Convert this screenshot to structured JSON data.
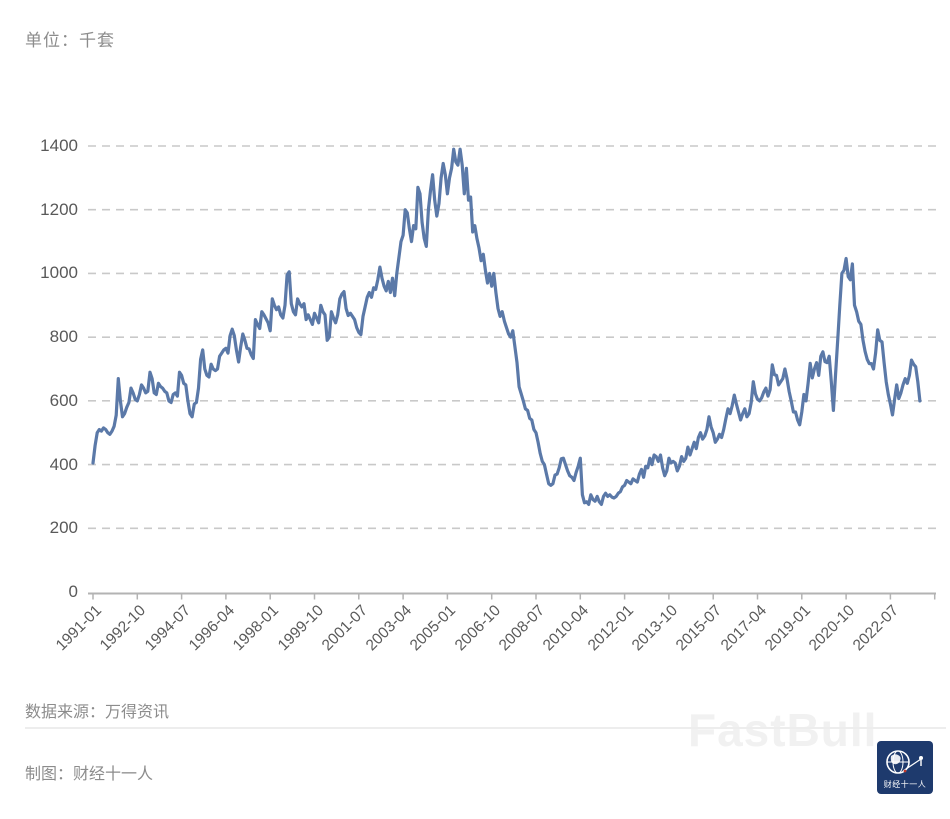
{
  "page": {
    "unit_label": "单位：千套",
    "source": "数据来源：万得资讯",
    "credit": "制图：财经十一人",
    "watermark": "FastBull",
    "logo_text": "财经十一人"
  },
  "colors": {
    "line": "#5b79a8",
    "grid": "#c9c9c9",
    "axis": "#b3b3b3",
    "tick_label": "#595959",
    "muted_text": "#8c8c8c",
    "watermark": "#f1f1f1",
    "logo_bg": "#1e3a6d",
    "logo_accent": "#c0392b"
  },
  "chart_data": {
    "type": "line",
    "title": "单位：千套",
    "xlabel": "",
    "ylabel": "",
    "x_start": "1991-01",
    "frequency": "monthly",
    "months_per_x_tick": 21,
    "x_tick_labels": [
      "1991-01",
      "1992-10",
      "1994-07",
      "1996-04",
      "1998-01",
      "1999-10",
      "2001-07",
      "2003-04",
      "2005-01",
      "2006-10",
      "2008-07",
      "2010-04",
      "2012-01",
      "2013-10",
      "2015-07",
      "2017-04",
      "2019-01",
      "2020-10",
      "2022-07"
    ],
    "y_ticks": [
      0,
      200,
      400,
      600,
      800,
      1000,
      1200,
      1400
    ],
    "ylim": [
      0,
      1400
    ],
    "grid": "dashed-horizontal",
    "legend": "none",
    "values": [
      405,
      460,
      500,
      510,
      505,
      515,
      510,
      500,
      495,
      505,
      520,
      555,
      670,
      600,
      550,
      560,
      580,
      595,
      640,
      625,
      605,
      600,
      620,
      650,
      640,
      625,
      630,
      690,
      670,
      625,
      620,
      655,
      645,
      640,
      630,
      625,
      600,
      595,
      620,
      625,
      615,
      690,
      680,
      655,
      650,
      600,
      560,
      550,
      590,
      595,
      640,
      730,
      760,
      700,
      680,
      675,
      715,
      700,
      695,
      700,
      740,
      750,
      760,
      765,
      750,
      805,
      825,
      805,
      760,
      722,
      770,
      810,
      790,
      765,
      763,
      745,
      733,
      855,
      840,
      827,
      880,
      870,
      858,
      845,
      820,
      920,
      900,
      886,
      895,
      870,
      860,
      900,
      995,
      1005,
      905,
      880,
      870,
      920,
      905,
      895,
      905,
      855,
      870,
      855,
      840,
      875,
      860,
      845,
      900,
      880,
      870,
      790,
      800,
      880,
      860,
      845,
      870,
      920,
      935,
      943,
      890,
      868,
      875,
      865,
      855,
      830,
      815,
      808,
      865,
      895,
      925,
      940,
      925,
      955,
      950,
      980,
      1020,
      985,
      960,
      945,
      975,
      940,
      985,
      930,
      1000,
      1050,
      1100,
      1120,
      1200,
      1190,
      1140,
      1100,
      1150,
      1140,
      1270,
      1250,
      1160,
      1110,
      1085,
      1200,
      1260,
      1310,
      1230,
      1180,
      1220,
      1300,
      1345,
      1310,
      1250,
      1300,
      1330,
      1390,
      1350,
      1340,
      1390,
      1340,
      1250,
      1330,
      1230,
      1240,
      1130,
      1150,
      1110,
      1080,
      1040,
      1060,
      1010,
      970,
      1000,
      960,
      1000,
      940,
      890,
      865,
      880,
      850,
      830,
      810,
      800,
      820,
      770,
      720,
      644,
      622,
      600,
      575,
      570,
      545,
      540,
      510,
      500,
      470,
      435,
      410,
      400,
      370,
      340,
      335,
      340,
      367,
      370,
      390,
      418,
      420,
      400,
      380,
      365,
      360,
      350,
      375,
      395,
      420,
      305,
      280,
      283,
      275,
      305,
      290,
      285,
      300,
      283,
      275,
      300,
      310,
      300,
      305,
      298,
      295,
      300,
      310,
      315,
      330,
      335,
      350,
      345,
      340,
      355,
      350,
      345,
      370,
      385,
      360,
      395,
      390,
      420,
      400,
      430,
      425,
      410,
      430,
      390,
      365,
      380,
      420,
      405,
      410,
      405,
      380,
      395,
      425,
      410,
      420,
      455,
      430,
      450,
      470,
      450,
      485,
      500,
      480,
      490,
      510,
      550,
      518,
      500,
      470,
      480,
      495,
      485,
      510,
      545,
      575,
      560,
      585,
      618,
      590,
      565,
      540,
      560,
      575,
      550,
      560,
      595,
      660,
      622,
      605,
      600,
      610,
      628,
      640,
      615,
      635,
      713,
      682,
      680,
      650,
      660,
      670,
      700,
      670,
      630,
      600,
      565,
      565,
      540,
      525,
      565,
      620,
      600,
      655,
      718,
      672,
      700,
      720,
      680,
      740,
      754,
      723,
      720,
      740,
      660,
      570,
      680,
      790,
      900,
      1000,
      1010,
      1047,
      990,
      980,
      1030,
      900,
      880,
      850,
      840,
      790,
      755,
      730,
      717,
      717,
      700,
      750,
      823,
      790,
      785,
      720,
      660,
      620,
      590,
      556,
      605,
      650,
      607,
      625,
      650,
      670,
      655,
      680,
      728,
      715,
      707,
      660,
      600
    ]
  }
}
